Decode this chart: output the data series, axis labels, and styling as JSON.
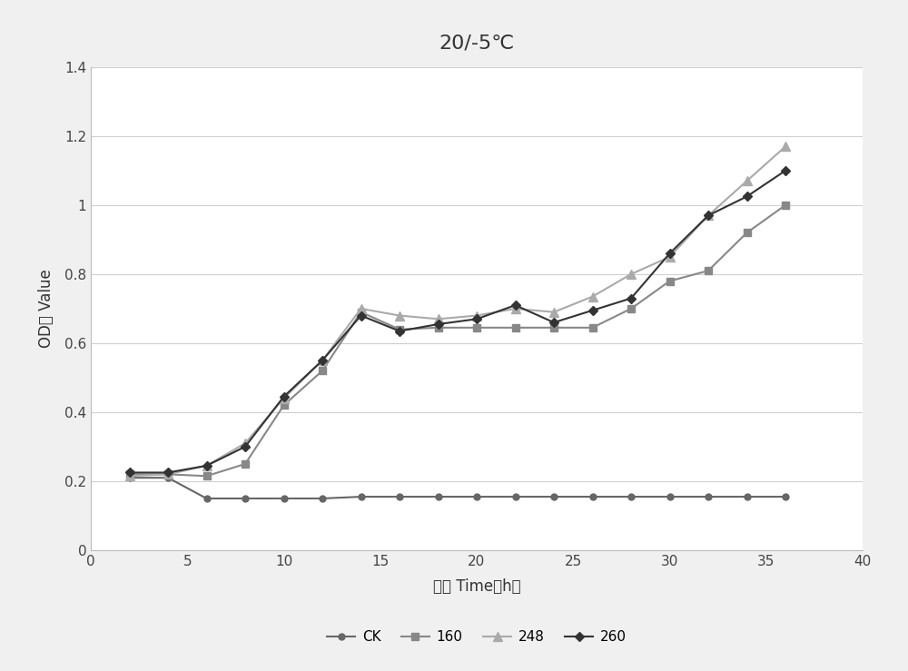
{
  "title": "20/-5℃",
  "xlabel": "时间 Time（h）",
  "ylabel": "OD値 Value",
  "xlim": [
    0,
    40
  ],
  "ylim": [
    0,
    1.4
  ],
  "xticks": [
    0,
    5,
    10,
    15,
    20,
    25,
    30,
    35,
    40
  ],
  "yticks": [
    0,
    0.2,
    0.4,
    0.6,
    0.8,
    1.0,
    1.2,
    1.4
  ],
  "series": {
    "CK": {
      "x": [
        2,
        4,
        6,
        8,
        10,
        12,
        14,
        16,
        18,
        20,
        22,
        24,
        26,
        28,
        30,
        32,
        34,
        36
      ],
      "y": [
        0.21,
        0.21,
        0.15,
        0.15,
        0.15,
        0.15,
        0.155,
        0.155,
        0.155,
        0.155,
        0.155,
        0.155,
        0.155,
        0.155,
        0.155,
        0.155,
        0.155,
        0.155
      ],
      "color": "#666666",
      "marker": "o",
      "marker_size": 5,
      "linewidth": 1.5
    },
    "160": {
      "x": [
        2,
        4,
        6,
        8,
        10,
        12,
        14,
        16,
        18,
        20,
        22,
        24,
        26,
        28,
        30,
        32,
        34,
        36
      ],
      "y": [
        0.22,
        0.22,
        0.215,
        0.25,
        0.42,
        0.52,
        0.69,
        0.64,
        0.645,
        0.645,
        0.645,
        0.645,
        0.645,
        0.7,
        0.78,
        0.81,
        0.92,
        1.0
      ],
      "color": "#888888",
      "marker": "s",
      "marker_size": 6,
      "linewidth": 1.5
    },
    "248": {
      "x": [
        2,
        4,
        6,
        8,
        10,
        12,
        14,
        16,
        18,
        20,
        22,
        24,
        26,
        28,
        30,
        32,
        34,
        36
      ],
      "y": [
        0.215,
        0.22,
        0.245,
        0.31,
        0.44,
        0.55,
        0.7,
        0.68,
        0.67,
        0.68,
        0.7,
        0.69,
        0.735,
        0.8,
        0.85,
        0.97,
        1.07,
        1.17
      ],
      "color": "#aaaaaa",
      "marker": "^",
      "marker_size": 7,
      "linewidth": 1.5
    },
    "260": {
      "x": [
        2,
        4,
        6,
        8,
        10,
        12,
        14,
        16,
        18,
        20,
        22,
        24,
        26,
        28,
        30,
        32,
        34,
        36
      ],
      "y": [
        0.225,
        0.225,
        0.245,
        0.3,
        0.445,
        0.55,
        0.68,
        0.635,
        0.655,
        0.67,
        0.71,
        0.66,
        0.695,
        0.73,
        0.86,
        0.97,
        1.025,
        1.1
      ],
      "color": "#333333",
      "marker": "D",
      "marker_size": 5,
      "linewidth": 1.5
    }
  },
  "legend_order": [
    "CK",
    "160",
    "248",
    "260"
  ],
  "outer_bg": "#f0f0f0",
  "inner_bg": "#ffffff",
  "grid_color": "#d0d0d0",
  "title_fontsize": 16,
  "label_fontsize": 12,
  "tick_fontsize": 11,
  "legend_fontsize": 11
}
